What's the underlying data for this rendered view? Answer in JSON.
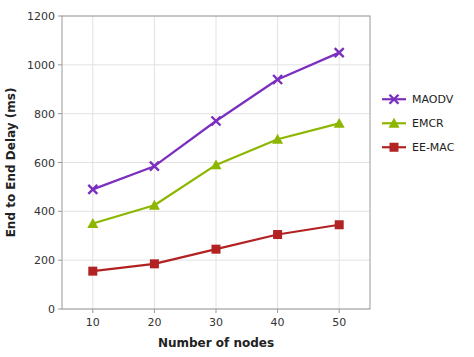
{
  "chart_data": {
    "type": "line",
    "x": [
      10,
      20,
      30,
      40,
      50
    ],
    "series": [
      {
        "name": "MAODV",
        "color": "#7B2FBE",
        "marker": "x",
        "values": [
          490,
          585,
          770,
          940,
          1050
        ]
      },
      {
        "name": "EMCR",
        "color": "#8DB600",
        "marker": "triangle",
        "values": [
          350,
          425,
          590,
          695,
          760
        ]
      },
      {
        "name": "EE-MAC",
        "color": "#B22222",
        "marker": "square",
        "values": [
          155,
          185,
          245,
          305,
          345
        ]
      }
    ],
    "xlabel": "Number of nodes",
    "ylabel": "End to End Delay (ms)",
    "xlim": [
      5,
      55
    ],
    "ylim": [
      0,
      1200
    ],
    "xticks": [
      10,
      20,
      30,
      40,
      50
    ],
    "yticks": [
      0,
      200,
      400,
      600,
      800,
      1000,
      1200
    ],
    "grid": true,
    "legend": "right"
  }
}
